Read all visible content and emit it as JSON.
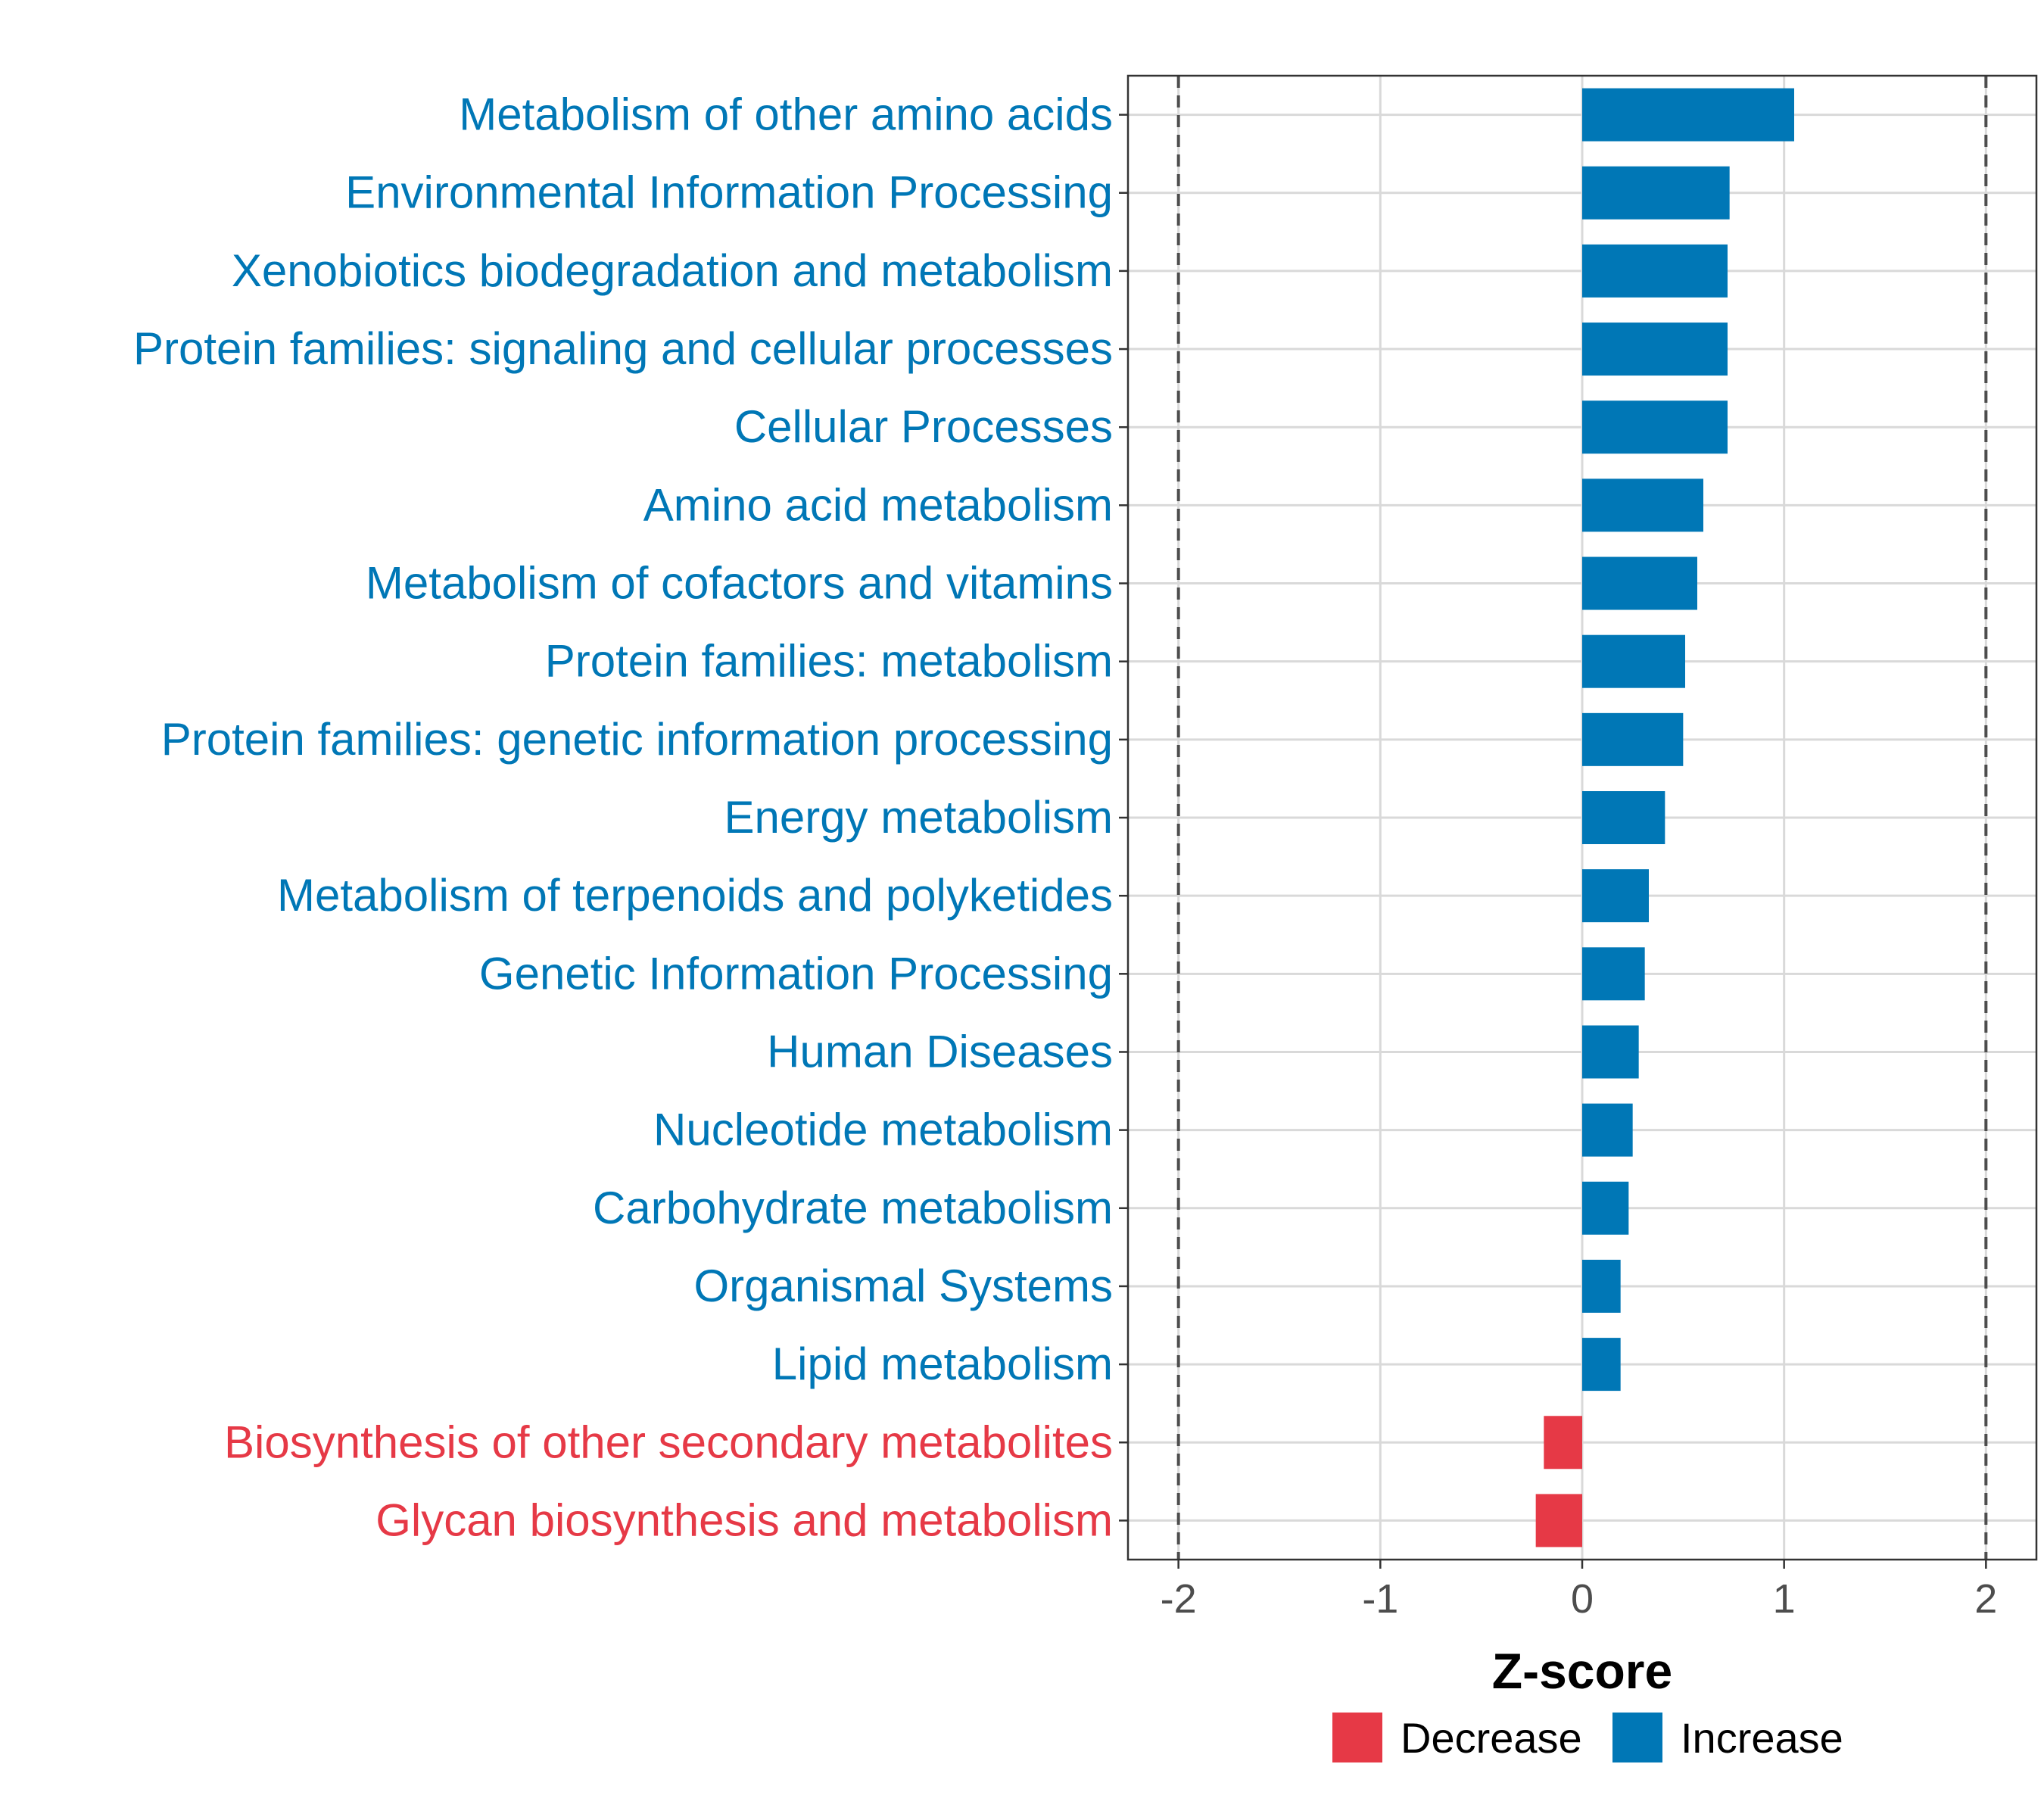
{
  "chart_data": {
    "type": "bar",
    "orientation": "horizontal",
    "title": "",
    "xlabel": "Z-score",
    "ylabel": "",
    "xlim": [
      -2.25,
      2.25
    ],
    "xticks": [
      -2,
      -1,
      0,
      1,
      2
    ],
    "xtick_labels": [
      "-2",
      "-1",
      "0",
      "1",
      "2"
    ],
    "reference_lines": [
      -2,
      2
    ],
    "grid": true,
    "legend_position": "bottom",
    "categories": [
      "Metabolism of other amino acids",
      "Environmental Information Processing",
      "Xenobiotics biodegradation and metabolism",
      "Protein families: signaling and cellular processes",
      "Cellular Processes",
      "Amino acid metabolism",
      "Metabolism of cofactors and vitamins",
      "Protein families: metabolism",
      "Protein families: genetic information processing",
      "Energy metabolism",
      "Metabolism of terpenoids and polyketides",
      "Genetic Information Processing",
      "Human Diseases",
      "Nucleotide metabolism",
      "Carbohydrate metabolism",
      "Organismal Systems",
      "Lipid metabolism",
      "Biosynthesis of other secondary metabolites",
      "Glycan biosynthesis and metabolism"
    ],
    "values": [
      1.05,
      0.73,
      0.72,
      0.72,
      0.72,
      0.6,
      0.57,
      0.51,
      0.5,
      0.41,
      0.33,
      0.31,
      0.28,
      0.25,
      0.23,
      0.19,
      0.19,
      -0.19,
      -0.23
    ],
    "groups": [
      "Increase",
      "Increase",
      "Increase",
      "Increase",
      "Increase",
      "Increase",
      "Increase",
      "Increase",
      "Increase",
      "Increase",
      "Increase",
      "Increase",
      "Increase",
      "Increase",
      "Increase",
      "Increase",
      "Increase",
      "Decrease",
      "Decrease"
    ],
    "legend": [
      {
        "name": "Decrease",
        "color": "#e63946"
      },
      {
        "name": "Increase",
        "color": "#0077b6"
      }
    ]
  },
  "colors": {
    "increase": "#0077b6",
    "decrease": "#e63946",
    "grid": "#d9d9d9",
    "reference_line": "#4d4d4d"
  }
}
